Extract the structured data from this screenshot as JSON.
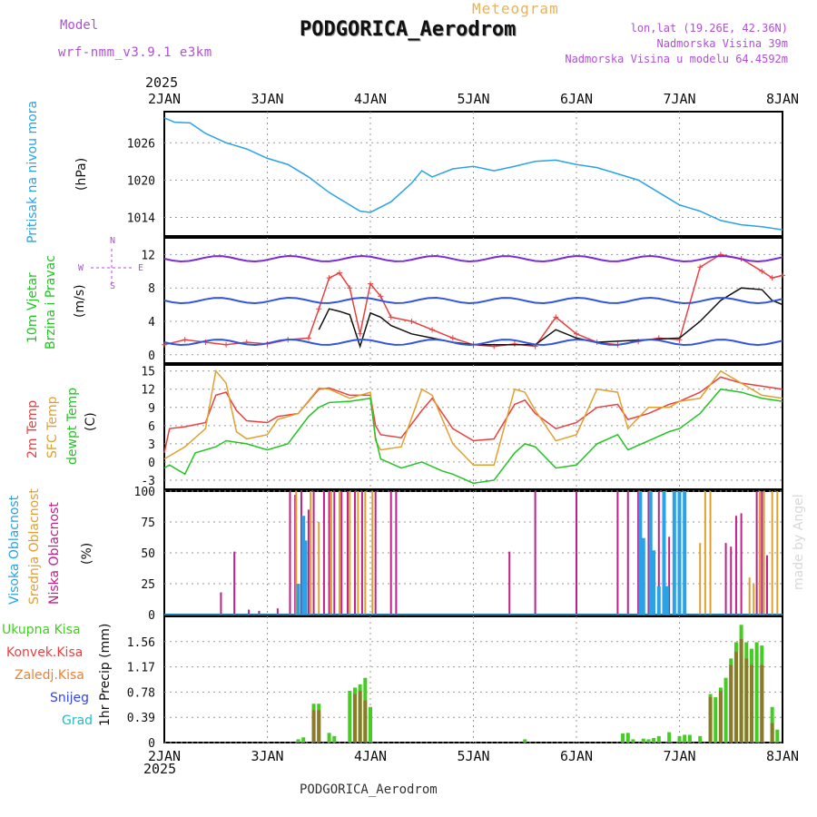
{
  "header": {
    "model_label": "Model",
    "model_name": "wrf-nmm_v3.9.1 e3km",
    "meteogram_label": "Meteogram",
    "station": "PODGORICA_Aerodrom",
    "lonlat": "lon,lat (19.26E, 42.36N)",
    "elevation": "Nadmorska Visina 39m",
    "model_elevation": "Nadmorska Visina u modelu 64.4592m",
    "footer_station": "PODGORICA_Aerodrom",
    "made_by": "made by Angel",
    "year_top": "2025",
    "year_bottom": "2025"
  },
  "colors": {
    "pressure": "#2aa3e6",
    "wind_speed": "#e84040",
    "gust": "#111111",
    "temp2m": "#e84040",
    "sfc": "#e0a030",
    "dew": "#22c422",
    "high": "#2aa3e6",
    "mid": "#e0a030",
    "low": "#c0208a",
    "precip_total": "#44cc22",
    "precip_conv": "#e84040",
    "precip_fr": "#ee8030",
    "snow": "#3344ee",
    "grad": "#22bbcc"
  },
  "chart_data": [
    {
      "type": "line",
      "title": "Pritisak na nivou mora",
      "ylabel": "(hPa)",
      "ylabel_title": "Pritisak na nivou mora",
      "yticks": [
        "1026",
        "1020",
        "1014"
      ],
      "ylim": [
        1011,
        1031
      ],
      "x_days": [
        "2JAN",
        "3JAN",
        "4JAN",
        "5JAN",
        "6JAN",
        "7JAN",
        "8JAN"
      ],
      "series": [
        {
          "name": "Pressure",
          "x": [
            0,
            0.1,
            0.25,
            0.4,
            0.6,
            0.8,
            1.0,
            1.2,
            1.4,
            1.6,
            1.8,
            1.9,
            2.0,
            2.2,
            2.4,
            2.5,
            2.6,
            2.8,
            3.0,
            3.2,
            3.4,
            3.6,
            3.8,
            4.0,
            4.2,
            4.4,
            4.6,
            4.8,
            5.0,
            5.2,
            5.4,
            5.6,
            5.8,
            6.0
          ],
          "values": [
            1030,
            1029.3,
            1029.2,
            1027.5,
            1026,
            1025,
            1023.5,
            1022.5,
            1020.5,
            1018,
            1016,
            1015,
            1014.8,
            1016.5,
            1019.5,
            1021.5,
            1020.5,
            1021.8,
            1022.2,
            1021.5,
            1022.2,
            1023,
            1023.2,
            1022.5,
            1022,
            1021,
            1020,
            1018,
            1016,
            1015,
            1013.5,
            1012.8,
            1012.5,
            1012
          ]
        }
      ]
    },
    {
      "type": "line",
      "title": "10m Vjetar Brzina i Pravac",
      "ylabel": "(m/s)",
      "ylabel_title1": "10m Vjetar",
      "ylabel_title2": "Brzina i Pravac",
      "compass": {
        "n": "N",
        "e": "E",
        "w": "W",
        "s": "S"
      },
      "yticks": [
        "12",
        "8",
        "4",
        "0"
      ],
      "ylim": [
        -1,
        14
      ],
      "series": [
        {
          "name": "Wind speed",
          "x": [
            0,
            0.2,
            0.4,
            0.6,
            0.8,
            1.0,
            1.2,
            1.4,
            1.5,
            1.6,
            1.7,
            1.8,
            1.9,
            2.0,
            2.1,
            2.2,
            2.4,
            2.6,
            2.8,
            3.0,
            3.2,
            3.4,
            3.6,
            3.8,
            4.0,
            4.2,
            4.4,
            4.6,
            4.8,
            5.0,
            5.2,
            5.4,
            5.6,
            5.8,
            5.9,
            6.0
          ],
          "values": [
            1.2,
            1.8,
            1.5,
            1.2,
            1.5,
            1.3,
            1.8,
            2.0,
            5.5,
            9.2,
            9.8,
            8.0,
            2.5,
            8.5,
            7.0,
            4.5,
            4.0,
            3.0,
            2.0,
            1.2,
            1.0,
            1.3,
            1.0,
            4.5,
            2.5,
            1.5,
            1.2,
            1.6,
            2.0,
            1.8,
            10.5,
            12.0,
            11.5,
            10.0,
            9.2,
            9.5
          ]
        },
        {
          "name": "Gust",
          "x": [
            1.5,
            1.6,
            1.7,
            1.8,
            1.9,
            2.0,
            2.1,
            2.2,
            2.4,
            2.6,
            2.8,
            3.0,
            3.6,
            3.8,
            4.0,
            4.2,
            5.0,
            5.2,
            5.4,
            5.6,
            5.8,
            5.9,
            6.0
          ],
          "values": [
            3.0,
            5.5,
            5.2,
            4.8,
            1.0,
            5.0,
            4.5,
            3.5,
            2.5,
            2.0,
            1.5,
            1.2,
            1.2,
            3.0,
            2.0,
            1.5,
            2.0,
            4.0,
            6.5,
            8.0,
            7.8,
            6.5,
            6.0
          ]
        }
      ]
    },
    {
      "type": "line",
      "title": "2m Temp / SFC Temp / dewpt Temp",
      "ylabel": "(C)",
      "legend": [
        "2m Temp",
        "SFC Temp",
        "dewpt Temp"
      ],
      "yticks": [
        "15",
        "12",
        "9",
        "6",
        "3",
        "0",
        "-3"
      ],
      "ylim": [
        -4.5,
        16
      ],
      "series": [
        {
          "name": "2m Temp",
          "x": [
            0,
            0.05,
            0.2,
            0.4,
            0.5,
            0.6,
            0.7,
            0.8,
            1.0,
            1.1,
            1.3,
            1.5,
            1.6,
            1.8,
            2.0,
            2.05,
            2.1,
            2.3,
            2.5,
            2.6,
            2.8,
            3.0,
            3.2,
            3.4,
            3.5,
            3.6,
            3.8,
            4.0,
            4.2,
            4.4,
            4.5,
            4.7,
            4.9,
            5.0,
            5.2,
            5.4,
            5.6,
            5.8,
            6.0
          ],
          "values": [
            1.5,
            5.5,
            5.8,
            6.5,
            11.0,
            11.5,
            8.5,
            6.8,
            6.5,
            7.5,
            8.0,
            12.0,
            12.2,
            11.0,
            11.0,
            6.0,
            4.5,
            4.0,
            8.5,
            10.5,
            5.5,
            3.5,
            3.8,
            9.5,
            10.2,
            8.0,
            5.5,
            6.5,
            9.0,
            9.5,
            7.0,
            8.0,
            9.5,
            10.0,
            11.5,
            14.0,
            13.0,
            12.5,
            12.0
          ]
        },
        {
          "name": "SFC Temp",
          "x": [
            0,
            0.05,
            0.2,
            0.4,
            0.5,
            0.6,
            0.7,
            0.8,
            1.0,
            1.1,
            1.3,
            1.5,
            1.6,
            1.8,
            2.0,
            2.05,
            2.1,
            2.3,
            2.5,
            2.6,
            2.8,
            3.0,
            3.2,
            3.4,
            3.5,
            3.6,
            3.8,
            4.0,
            4.2,
            4.4,
            4.5,
            4.7,
            4.9,
            5.0,
            5.2,
            5.4,
            5.6,
            5.8,
            6.0
          ],
          "values": [
            0.5,
            1.0,
            2.5,
            5.5,
            15.0,
            13.0,
            5.0,
            3.8,
            4.5,
            7.0,
            8.0,
            12.2,
            12.0,
            10.5,
            11.5,
            3.5,
            2.0,
            2.5,
            12.0,
            11.0,
            3.0,
            -0.5,
            -0.5,
            12.0,
            11.5,
            8.5,
            3.5,
            4.5,
            12.0,
            11.5,
            5.5,
            9.0,
            9.0,
            10.0,
            10.5,
            15.0,
            13.0,
            11.0,
            10.5
          ]
        },
        {
          "name": "dewpt Temp",
          "x": [
            0,
            0.05,
            0.2,
            0.3,
            0.5,
            0.6,
            0.8,
            1.0,
            1.2,
            1.4,
            1.5,
            1.6,
            1.8,
            2.0,
            2.05,
            2.1,
            2.3,
            2.5,
            2.7,
            2.8,
            3.0,
            3.2,
            3.4,
            3.5,
            3.6,
            3.8,
            4.0,
            4.2,
            4.4,
            4.5,
            4.7,
            4.9,
            5.0,
            5.2,
            5.4,
            5.6,
            5.8,
            6.0
          ],
          "values": [
            -1.0,
            -0.5,
            -2.0,
            1.5,
            2.5,
            3.5,
            3.0,
            2.0,
            3.0,
            7.5,
            9.0,
            9.8,
            10.0,
            10.5,
            4.0,
            0.5,
            -1.0,
            0.0,
            -1.5,
            -2.0,
            -3.5,
            -3.0,
            1.5,
            3.0,
            2.5,
            -1.0,
            -0.5,
            3.0,
            4.5,
            2.0,
            3.5,
            5.0,
            5.5,
            8.0,
            12.0,
            11.5,
            10.5,
            10.0
          ]
        }
      ]
    },
    {
      "type": "bar",
      "title": "Visoka / Srednja / Niska Oblacnost",
      "ylabel": "(%)",
      "legend": [
        "Visoka Oblacnost",
        "Srednja Oblacnost",
        "Niska Oblacnost"
      ],
      "yticks": [
        "100",
        "75",
        "50",
        "25",
        "0"
      ],
      "ylim": [
        0,
        100
      ],
      "series": [
        {
          "name": "Niska",
          "x": [
            0.55,
            0.68,
            0.82,
            0.92,
            1.1,
            1.22,
            1.27,
            1.33,
            1.4,
            1.45,
            1.55,
            1.6,
            1.65,
            1.72,
            1.78,
            1.85,
            1.92,
            2.05,
            2.2,
            2.25,
            3.35,
            3.6,
            4.0,
            4.4,
            4.5,
            4.6,
            4.7,
            4.8,
            4.9,
            5.45,
            5.5,
            5.55,
            5.6,
            5.75,
            5.8,
            5.85
          ],
          "values": [
            18,
            51,
            4,
            3,
            5,
            100,
            97,
            100,
            85,
            100,
            100,
            100,
            100,
            100,
            100,
            100,
            100,
            100,
            100,
            100,
            51,
            100,
            100,
            100,
            100,
            100,
            100,
            100,
            63,
            58,
            55,
            80,
            82,
            100,
            100,
            48
          ]
        },
        {
          "name": "Srednja",
          "x": [
            1.28,
            1.42,
            1.5,
            1.62,
            1.7,
            1.8,
            1.88,
            1.95,
            2.02,
            5.2,
            5.25,
            5.3,
            5.68,
            5.72,
            5.78,
            5.82,
            5.9,
            5.95
          ],
          "values": [
            100,
            100,
            75,
            100,
            100,
            100,
            100,
            100,
            100,
            58,
            100,
            100,
            30,
            25,
            100,
            100,
            100,
            100
          ]
        },
        {
          "name": "Visoka",
          "x": [
            1.3,
            1.35,
            1.37,
            4.62,
            4.65,
            4.72,
            4.75,
            4.8,
            4.85,
            4.88,
            4.95,
            5.0,
            5.05
          ],
          "values": [
            25,
            80,
            60,
            100,
            62,
            100,
            52,
            23,
            100,
            23,
            100,
            100,
            100
          ]
        }
      ]
    },
    {
      "type": "bar",
      "title": "1hr Precip",
      "ylabel": "1hr Precip (mm)",
      "legend": [
        "Ukupna Kisa",
        "Konvek.Kisa",
        "Zaledj.Kisa",
        "Snijeg",
        "Grad"
      ],
      "yticks": [
        "1.56",
        "1.17",
        "0.78",
        "0.39",
        "0"
      ],
      "ylim": [
        0,
        1.95
      ],
      "series": [
        {
          "name": "Ukupna Kisa",
          "x": [
            1.3,
            1.35,
            1.45,
            1.5,
            1.6,
            1.65,
            1.8,
            1.85,
            1.9,
            1.95,
            2.0,
            3.5,
            4.45,
            4.5,
            4.55,
            4.65,
            4.7,
            4.75,
            4.8,
            4.9,
            5.0,
            5.05,
            5.1,
            5.2,
            5.3,
            5.35,
            5.4,
            5.45,
            5.5,
            5.55,
            5.6,
            5.65,
            5.7,
            5.75,
            5.8,
            5.9,
            5.95
          ],
          "values": [
            0.05,
            0.08,
            0.6,
            0.6,
            0.15,
            0.1,
            0.8,
            0.85,
            0.9,
            1.0,
            0.55,
            0.05,
            0.14,
            0.15,
            0.05,
            0.06,
            0.05,
            0.07,
            0.1,
            0.16,
            0.1,
            0.12,
            0.12,
            0.1,
            0.75,
            0.7,
            0.85,
            1.0,
            1.3,
            1.55,
            1.82,
            1.55,
            1.45,
            1.55,
            1.5,
            0.55,
            0.2
          ]
        },
        {
          "name": "Konvek.Kisa",
          "x": [
            1.45,
            1.5,
            1.85,
            1.9,
            1.95,
            5.3,
            5.4,
            5.5,
            5.55,
            5.6,
            5.65,
            5.7,
            5.8,
            5.9
          ],
          "values": [
            0.5,
            0.5,
            0.75,
            0.8,
            0.65,
            0.7,
            0.8,
            1.2,
            1.4,
            1.6,
            1.3,
            1.2,
            1.2,
            0.3
          ]
        }
      ]
    }
  ]
}
